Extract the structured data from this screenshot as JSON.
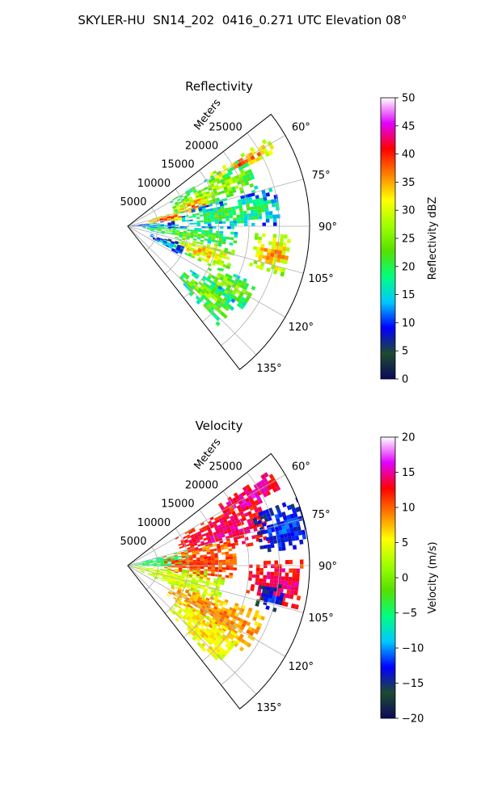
{
  "figure": {
    "suptitle": "SKYLER-HU  SN14_202  0416_0.271 UTC Elevation 08°"
  },
  "chart_data": [
    {
      "type": "heatmap",
      "projection": "polar-sector",
      "title": "Reflectivity",
      "radial_label": "Meters",
      "radial_ticks": [
        "5000",
        "10000",
        "15000",
        "20000",
        "25000"
      ],
      "radial_range": [
        0,
        30000
      ],
      "angle_ticks": [
        "60°",
        "75°",
        "90°",
        "105°",
        "120°",
        "135°"
      ],
      "angle_range_deg": [
        52,
        142
      ],
      "grid": true,
      "colorbar": {
        "label": "Reflectivity dBZ",
        "range": [
          0,
          50
        ],
        "ticks": [
          "0",
          "5",
          "10",
          "15",
          "20",
          "25",
          "30",
          "35",
          "40",
          "45",
          "50"
        ],
        "colormap": [
          "#0a0a5a",
          "#1f4a30",
          "#0000ff",
          "#00c8ff",
          "#00ff80",
          "#55e000",
          "#a0ff00",
          "#ffff00",
          "#ff8000",
          "#ff0000",
          "#e000ff",
          "#ffffff"
        ]
      },
      "echo_regions": [
        {
          "az": 60,
          "r0": 16000,
          "r1": 27000,
          "aw": 2.5,
          "dbz": 37
        },
        {
          "az": 67,
          "r0": 8000,
          "r1": 22000,
          "aw": 8,
          "dbz": 27
        },
        {
          "az": 72,
          "r0": 8000,
          "r1": 14000,
          "aw": 6,
          "dbz": 36
        },
        {
          "az": 78,
          "r0": 3000,
          "r1": 9000,
          "aw": 5,
          "dbz": 38
        },
        {
          "az": 82,
          "r0": 9000,
          "r1": 25000,
          "aw": 7,
          "dbz": 21
        },
        {
          "az": 88,
          "r0": 0,
          "r1": 8000,
          "aw": 6,
          "dbz": 15
        },
        {
          "az": 96,
          "r0": 2000,
          "r1": 18000,
          "aw": 6,
          "dbz": 23
        },
        {
          "az": 100,
          "r0": 21000,
          "r1": 27000,
          "aw": 7,
          "dbz": 35
        },
        {
          "az": 108,
          "r0": 8000,
          "r1": 18000,
          "aw": 7,
          "dbz": 33
        },
        {
          "az": 113,
          "r0": 4000,
          "r1": 10000,
          "aw": 6,
          "dbz": 14
        },
        {
          "az": 120,
          "r0": 15000,
          "r1": 23000,
          "aw": 6,
          "dbz": 26
        },
        {
          "az": 130,
          "r0": 12000,
          "r1": 22000,
          "aw": 7,
          "dbz": 25
        }
      ]
    },
    {
      "type": "heatmap",
      "projection": "polar-sector",
      "title": "Velocity",
      "radial_label": "Meters",
      "radial_ticks": [
        "5000",
        "10000",
        "15000",
        "20000",
        "25000"
      ],
      "radial_range": [
        0,
        30000
      ],
      "angle_ticks": [
        "60°",
        "75°",
        "90°",
        "105°",
        "120°",
        "135°"
      ],
      "angle_range_deg": [
        52,
        142
      ],
      "grid": true,
      "colorbar": {
        "label": "Velocity (m/s)",
        "range": [
          -20,
          20
        ],
        "ticks": [
          "−20",
          "−15",
          "−10",
          "−5",
          "0",
          "5",
          "10",
          "15",
          "20"
        ],
        "colormap": [
          "#0a0a5a",
          "#1f4a30",
          "#0000ff",
          "#00c8ff",
          "#00ff80",
          "#55e000",
          "#a0ff00",
          "#ffff00",
          "#ff8000",
          "#ff0000",
          "#e000ff",
          "#ffffff"
        ]
      },
      "echo_regions": [
        {
          "az": 60,
          "r0": 18000,
          "r1": 28000,
          "aw": 4,
          "v": 15
        },
        {
          "az": 70,
          "r0": 9000,
          "r1": 24000,
          "aw": 10,
          "v": 14
        },
        {
          "az": 76,
          "r0": 22000,
          "r1": 30000,
          "aw": 8,
          "v": -12
        },
        {
          "az": 83,
          "r0": 0,
          "r1": 10000,
          "aw": 8,
          "v": -4
        },
        {
          "az": 88,
          "r0": 6000,
          "r1": 18000,
          "aw": 12,
          "v": 11
        },
        {
          "az": 96,
          "r0": 20000,
          "r1": 29000,
          "aw": 8,
          "v": 14
        },
        {
          "az": 102,
          "r0": 22000,
          "r1": 26000,
          "aw": 5,
          "v": -13
        },
        {
          "az": 104,
          "r0": 0,
          "r1": 16000,
          "aw": 10,
          "v": 4
        },
        {
          "az": 118,
          "r0": 8000,
          "r1": 24000,
          "aw": 9,
          "v": 9
        },
        {
          "az": 130,
          "r0": 10000,
          "r1": 22000,
          "aw": 8,
          "v": 6
        }
      ]
    }
  ]
}
